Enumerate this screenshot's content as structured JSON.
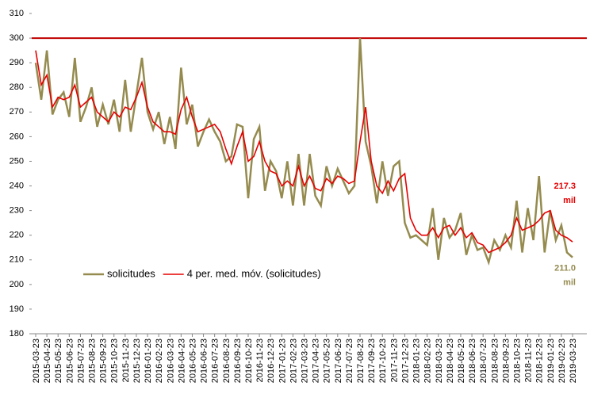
{
  "chart_data": {
    "type": "line",
    "categories": [
      "2015-03-23",
      null,
      "2015-04-23",
      null,
      "2015-05-23",
      null,
      "2015-06-23",
      null,
      "2015-07-23",
      null,
      "2015-08-23",
      null,
      "2015-09-23",
      null,
      "2015-10-23",
      null,
      "2015-11-23",
      null,
      "2015-12-23",
      null,
      "2016-01-23",
      null,
      "2016-02-23",
      null,
      "2016-03-23",
      null,
      "2016-04-23",
      null,
      "2016-05-23",
      null,
      "2016-06-23",
      null,
      "2016-07-23",
      null,
      "2016-08-23",
      null,
      "2016-09-23",
      null,
      "2016-10-23",
      null,
      "2016-11-23",
      null,
      "2016-12-23",
      null,
      "2017-01-23",
      null,
      "2017-02-23",
      null,
      "2017-03-23",
      null,
      "2017-04-23",
      null,
      "2017-05-23",
      null,
      "2017-06-23",
      null,
      "2017-07-23",
      null,
      "2017-08-23",
      null,
      "2017-09-23",
      null,
      "2017-10-23",
      null,
      "2017-11-23",
      null,
      "2017-12-23",
      null,
      "2018-01-23",
      null,
      "2018-02-23",
      null,
      "2018-03-23",
      null,
      "2018-04-23",
      null,
      "2018-05-23",
      null,
      "2018-06-23",
      null,
      "2018-07-23",
      null,
      "2018-08-23",
      null,
      "2018-09-23",
      null,
      "2018-10-23",
      null,
      "2018-11-23",
      null,
      "2018-12-23",
      null,
      "2019-01-23",
      null,
      "2019-02-23",
      null,
      "2019-03-23"
    ],
    "series": [
      {
        "name": "solicitudes",
        "color": "#958b4f",
        "end_label": [
          "211.0",
          "mil"
        ],
        "values": [
          290,
          275,
          295,
          269,
          275,
          278,
          268,
          292,
          266,
          272,
          280,
          264,
          273,
          265,
          275,
          262,
          283,
          262,
          277,
          292,
          270,
          263,
          270,
          257,
          268,
          255,
          288,
          265,
          273,
          256,
          262,
          267,
          262,
          258,
          250,
          252,
          265,
          264,
          235,
          259,
          264,
          238,
          250,
          246,
          235,
          250,
          232,
          253,
          232,
          253,
          236,
          232,
          248,
          240,
          247,
          242,
          237,
          240,
          300,
          258,
          248,
          233,
          250,
          236,
          248,
          250,
          225,
          219,
          220,
          218,
          216,
          231,
          210,
          227,
          219,
          222,
          229,
          212,
          220,
          214,
          215,
          209,
          218,
          214,
          220,
          215,
          234,
          213,
          231,
          218,
          244,
          213,
          230,
          218,
          224,
          213,
          211.0
        ]
      },
      {
        "name": "4 per. med. móv. (solicitudes)",
        "color": "#e60000",
        "end_label": [
          "217.3",
          "mil"
        ],
        "values": [
          295,
          281,
          285,
          272,
          276,
          275,
          276,
          281,
          272,
          274,
          276,
          270,
          268,
          266,
          270,
          268,
          272,
          271,
          276,
          282,
          272,
          266,
          264,
          262,
          262,
          261,
          271,
          276,
          268,
          262,
          263,
          264,
          265,
          262,
          255,
          249,
          256,
          262,
          250,
          252,
          258,
          250,
          246,
          245,
          240,
          242,
          240,
          248,
          240,
          244,
          239,
          238,
          243,
          241,
          244,
          243,
          241,
          242,
          258,
          272,
          250,
          240,
          237,
          242,
          238,
          243,
          245,
          227,
          222,
          220,
          220,
          223,
          219,
          223,
          224,
          220,
          223,
          219,
          221,
          217,
          216,
          213,
          214,
          215,
          217,
          220,
          227,
          222,
          223,
          224,
          226,
          229,
          230,
          222,
          220,
          219,
          217.3
        ]
      }
    ],
    "reference_lines": [
      {
        "value": 300,
        "color": "#c00000"
      }
    ],
    "ylim": [
      180,
      310
    ],
    "yticks": [
      180,
      190,
      200,
      210,
      220,
      230,
      240,
      250,
      260,
      270,
      280,
      290,
      300,
      310
    ],
    "legend": "lower left"
  }
}
